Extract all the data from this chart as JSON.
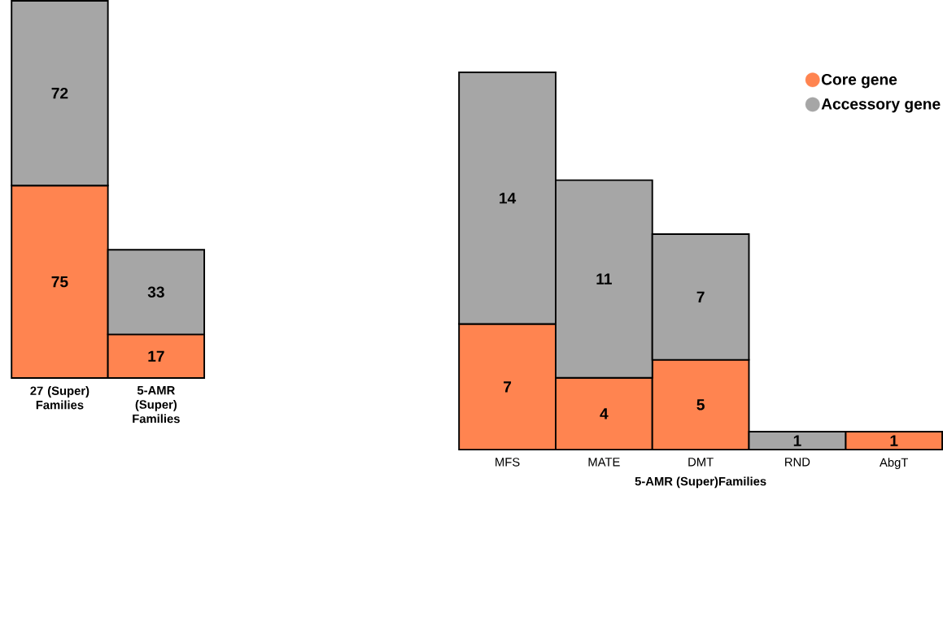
{
  "chart_data": [
    {
      "type": "bar",
      "stacked": true,
      "categories": [
        "27 (Super) Families",
        "5-AMR (Super) Families"
      ],
      "ylim": [
        0,
        147
      ],
      "tick_labels": "x",
      "data_labels": true,
      "legend": false,
      "series": [
        {
          "color": "#ff8450",
          "values": [
            75,
            17
          ]
        },
        {
          "color": "#a6a6a6",
          "values": [
            72,
            33
          ]
        }
      ]
    },
    {
      "type": "bar",
      "stacked": true,
      "categories": [
        "MFS",
        "MATE",
        "DMT",
        "RND",
        "AbgT"
      ],
      "xlabel": "5-AMR (Super)Families",
      "ylim": [
        0,
        21
      ],
      "tick_labels": "x",
      "data_labels": true,
      "legend": "top right",
      "series": [
        {
          "name": "Core gene",
          "color": "#ff8450",
          "values": [
            7,
            4,
            5,
            null,
            1
          ]
        },
        {
          "name": "Accessory gene",
          "color": "#a6a6a6",
          "values": [
            14,
            11,
            7,
            1,
            null
          ]
        }
      ]
    }
  ]
}
